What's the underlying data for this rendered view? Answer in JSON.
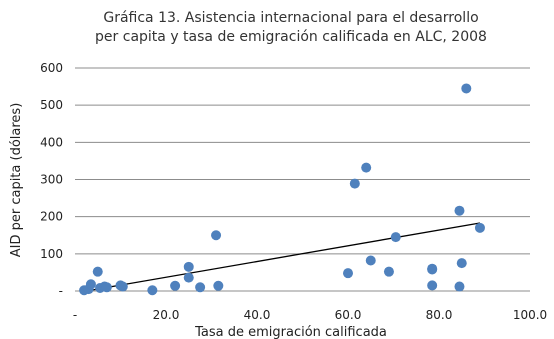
{
  "chart_data": {
    "type": "scatter",
    "title_lines": [
      "Gráfica 13. Asistencia internacional para el desarrollo",
      "per capita y tasa de emigración calificada en ALC, 2008"
    ],
    "xlabel": "Tasa de emigración calificada",
    "ylabel": "AID per capita (dólares)",
    "xlim": [
      0,
      100
    ],
    "ylim": [
      0,
      600
    ],
    "x_ticks": [
      {
        "value": 0,
        "label": "-"
      },
      {
        "value": 20,
        "label": "20.0"
      },
      {
        "value": 40,
        "label": "40.0"
      },
      {
        "value": 60,
        "label": "60.0"
      },
      {
        "value": 80,
        "label": "80.0"
      },
      {
        "value": 100,
        "label": "100.0"
      }
    ],
    "y_ticks": [
      {
        "value": 0,
        "label": "-"
      },
      {
        "value": 100,
        "label": "100"
      },
      {
        "value": 200,
        "label": "200"
      },
      {
        "value": 300,
        "label": "300"
      },
      {
        "value": 400,
        "label": "400"
      },
      {
        "value": 500,
        "label": "500"
      },
      {
        "value": 600,
        "label": "600"
      }
    ],
    "grid": "horizontal",
    "marker_color": "#4f81bd",
    "trend_color": "#000000",
    "points": [
      {
        "x": 2.0,
        "y": 2
      },
      {
        "x": 3.0,
        "y": 5
      },
      {
        "x": 3.5,
        "y": 18
      },
      {
        "x": 5.0,
        "y": 52
      },
      {
        "x": 5.5,
        "y": 8
      },
      {
        "x": 6.5,
        "y": 12
      },
      {
        "x": 7.0,
        "y": 10
      },
      {
        "x": 10.0,
        "y": 15
      },
      {
        "x": 10.5,
        "y": 12
      },
      {
        "x": 17.0,
        "y": 2
      },
      {
        "x": 22.0,
        "y": 14
      },
      {
        "x": 25.0,
        "y": 65
      },
      {
        "x": 25.0,
        "y": 36
      },
      {
        "x": 27.5,
        "y": 10
      },
      {
        "x": 31.0,
        "y": 150
      },
      {
        "x": 31.5,
        "y": 14
      },
      {
        "x": 60.0,
        "y": 48
      },
      {
        "x": 61.5,
        "y": 289
      },
      {
        "x": 64.0,
        "y": 332
      },
      {
        "x": 65.0,
        "y": 82
      },
      {
        "x": 69.0,
        "y": 52
      },
      {
        "x": 70.5,
        "y": 145
      },
      {
        "x": 78.5,
        "y": 60
      },
      {
        "x": 78.5,
        "y": 58
      },
      {
        "x": 78.5,
        "y": 15
      },
      {
        "x": 84.5,
        "y": 216
      },
      {
        "x": 84.5,
        "y": 12
      },
      {
        "x": 85.0,
        "y": 75
      },
      {
        "x": 86.0,
        "y": 545
      },
      {
        "x": 89.0,
        "y": 170
      }
    ],
    "trendline": [
      [
        2.5,
        0
      ],
      [
        89.0,
        183
      ]
    ]
  }
}
